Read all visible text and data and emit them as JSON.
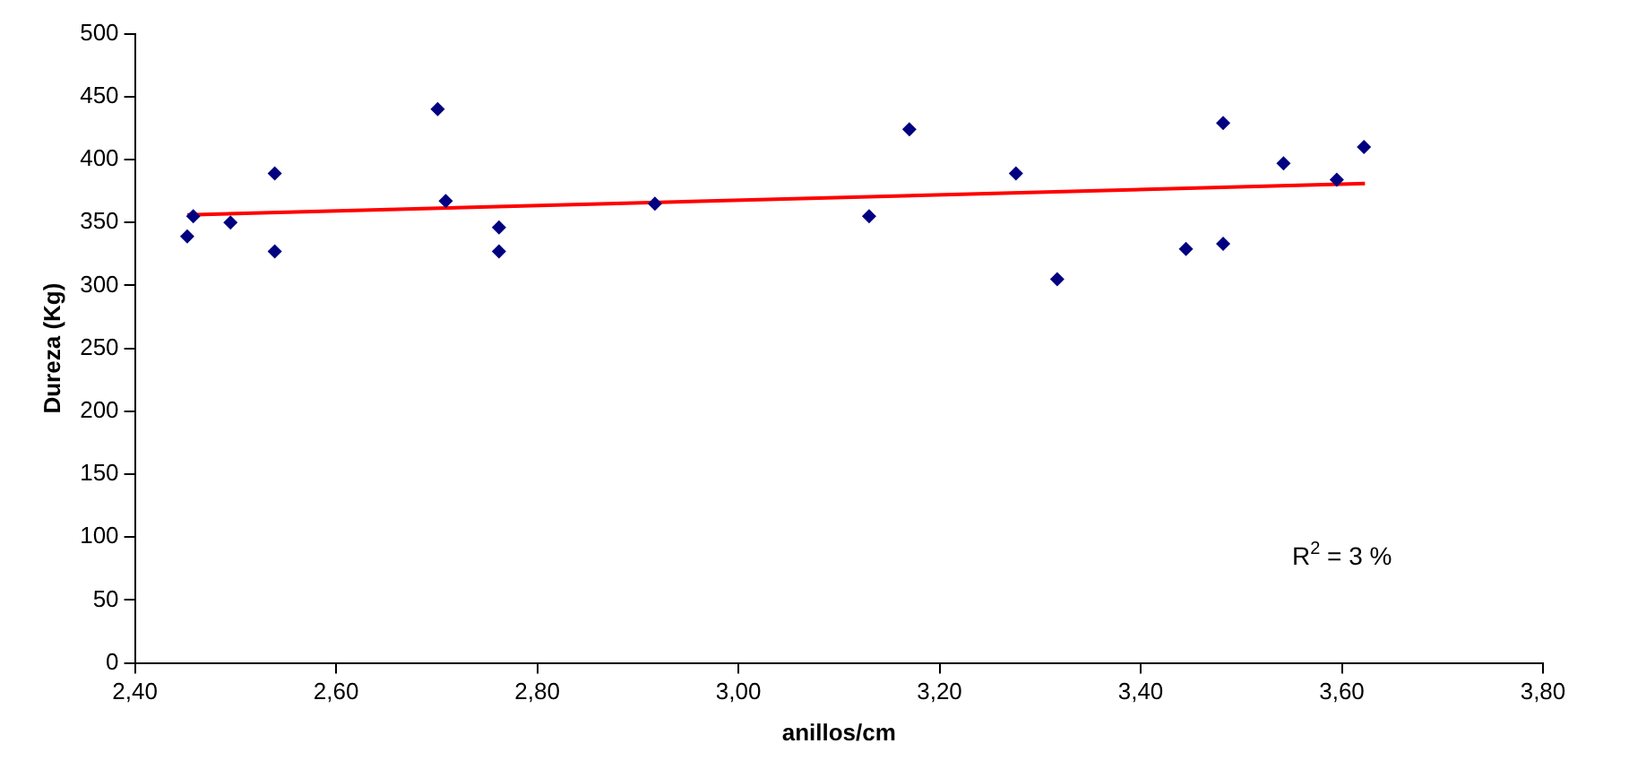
{
  "chart_data": {
    "type": "scatter",
    "xlabel": "anillos/cm",
    "ylabel": "Dureza (Kg)",
    "marker": "diamond",
    "legend": false,
    "grid": false,
    "xlim": [
      2.4,
      3.8
    ],
    "xticks": [
      {
        "value": 2.4,
        "label": "2,40"
      },
      {
        "value": 2.6,
        "label": "2,60"
      },
      {
        "value": 2.8,
        "label": "2,80"
      },
      {
        "value": 3.0,
        "label": "3,00"
      },
      {
        "value": 3.2,
        "label": "3,20"
      },
      {
        "value": 3.4,
        "label": "3,40"
      },
      {
        "value": 3.6,
        "label": "3,60"
      },
      {
        "value": 3.8,
        "label": "3,80"
      }
    ],
    "ylim": [
      0,
      500
    ],
    "yticks": [
      0,
      50,
      100,
      150,
      200,
      250,
      300,
      350,
      400,
      450,
      500
    ],
    "series": [
      {
        "color": "#000080",
        "x": [
          2.452,
          2.458,
          2.495,
          2.539,
          2.539,
          2.701,
          2.709,
          2.762,
          2.762,
          2.917,
          3.13,
          3.17,
          3.276,
          3.317,
          3.445,
          3.482,
          3.482,
          3.542,
          3.595,
          3.622
        ],
        "values": [
          339,
          355,
          350,
          389,
          327,
          440,
          367,
          346,
          327,
          365,
          355,
          424,
          389,
          305,
          329,
          333,
          429,
          397,
          384,
          410
        ]
      },
      {
        "type": "line",
        "color": "#ff0000",
        "marker": "none",
        "x": [
          2.452,
          3.623
        ],
        "values": [
          356,
          381
        ]
      }
    ],
    "annotations": [
      "R$^{2}$ = 3 %"
    ]
  }
}
